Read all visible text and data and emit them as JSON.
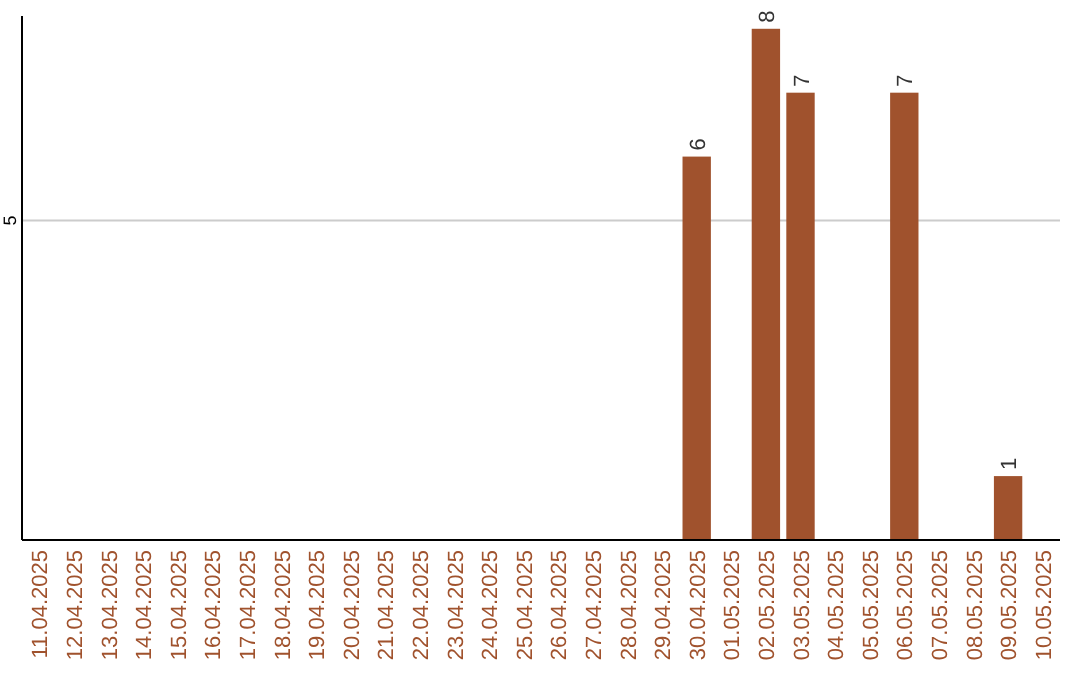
{
  "chart_data": {
    "type": "bar",
    "categories": [
      "11.04.2025",
      "12.04.2025",
      "13.04.2025",
      "14.04.2025",
      "15.04.2025",
      "16.04.2025",
      "17.04.2025",
      "18.04.2025",
      "19.04.2025",
      "20.04.2025",
      "21.04.2025",
      "22.04.2025",
      "23.04.2025",
      "24.04.2025",
      "25.04.2025",
      "26.04.2025",
      "27.04.2025",
      "28.04.2025",
      "29.04.2025",
      "30.04.2025",
      "01.05.2025",
      "02.05.2025",
      "03.05.2025",
      "04.05.2025",
      "05.05.2025",
      "06.05.2025",
      "07.05.2025",
      "08.05.2025",
      "09.05.2025",
      "10.05.2025"
    ],
    "values": [
      null,
      null,
      null,
      null,
      null,
      null,
      null,
      null,
      null,
      null,
      null,
      null,
      null,
      null,
      null,
      null,
      null,
      null,
      null,
      6,
      null,
      8,
      7,
      null,
      null,
      7,
      null,
      null,
      1,
      null
    ],
    "color": "#a0522d",
    "ylim": [
      0,
      8.2
    ],
    "yticks": [
      5
    ],
    "grid": "y",
    "data_labels": true
  }
}
